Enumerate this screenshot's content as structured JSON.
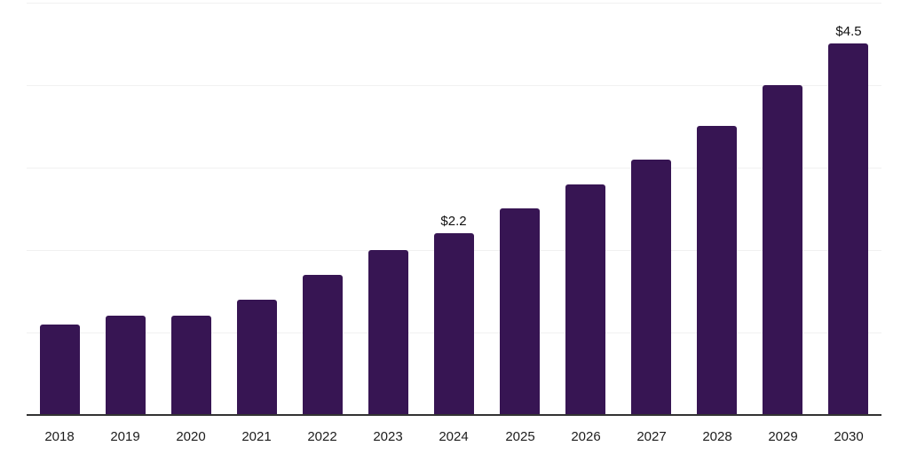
{
  "chart_data": {
    "type": "bar",
    "title": "",
    "xlabel": "",
    "ylabel": "",
    "categories": [
      "2018",
      "2019",
      "2020",
      "2021",
      "2022",
      "2023",
      "2024",
      "2025",
      "2026",
      "2027",
      "2028",
      "2029",
      "2030"
    ],
    "values": [
      1.1,
      1.2,
      1.2,
      1.4,
      1.7,
      2.0,
      2.2,
      2.5,
      2.8,
      3.1,
      3.5,
      4.0,
      4.5
    ],
    "data_labels": [
      {
        "category": "2024",
        "text": "$2.2"
      },
      {
        "category": "2030",
        "text": "$4.5"
      }
    ],
    "ylim": [
      0,
      5
    ],
    "grid": "horizontal",
    "grid_step": 1,
    "y_axis_labels_visible": false,
    "legend": "none",
    "bar_color": "#371553",
    "gridline_color": "#f1f1f1",
    "axis_color": "#333333",
    "tick_label_color": "#1c1c1c",
    "background_color": "#ffffff"
  }
}
